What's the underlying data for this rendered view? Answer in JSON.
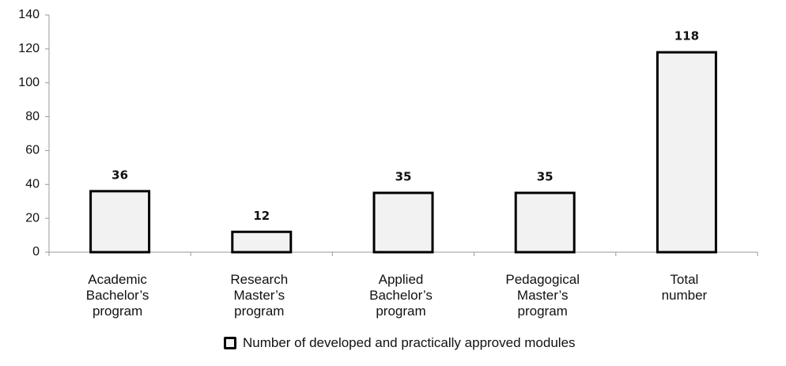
{
  "chart_data": {
    "type": "bar",
    "categories": [
      "Academic Bachelor’s program",
      "Research Master’s program",
      "Applied Bachelor’s program",
      "Pedagogical Master’s program",
      "Total number"
    ],
    "values": [
      36,
      12,
      35,
      35,
      118
    ],
    "color": "#f2f2f2",
    "ylim": [
      0,
      140
    ],
    "yticks": [
      0,
      20,
      40,
      60,
      80,
      100,
      120,
      140
    ],
    "grid": false,
    "series_name": "Number of developed and practically approved modules",
    "legend": "bottom"
  }
}
